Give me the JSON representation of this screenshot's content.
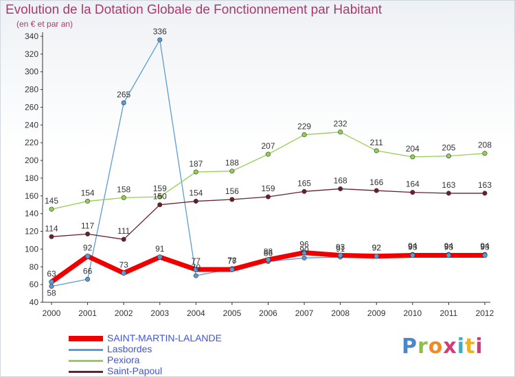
{
  "header": {
    "title": "Evolution de la Dotation Globale de Fonctionnement par Habitant",
    "subtitle": "(en € et par an)"
  },
  "brand": {
    "letters": [
      "P",
      "r",
      "o",
      "x",
      "i",
      "t",
      "i"
    ]
  },
  "chart_data": {
    "type": "line",
    "title": "Evolution de la Dotation Globale de Fonctionnement par Habitant",
    "subtitle": "(en € et par an)",
    "x": [
      "2000",
      "2001",
      "2002",
      "2003",
      "2004",
      "2005",
      "2006",
      "2007",
      "2008",
      "2009",
      "2010",
      "2011",
      "2012"
    ],
    "ylim": [
      40,
      340
    ],
    "yticks": [
      40,
      60,
      80,
      100,
      120,
      140,
      160,
      180,
      200,
      220,
      240,
      260,
      280,
      300,
      320,
      340
    ],
    "grid": false,
    "legend_position": "bottom-left",
    "series": [
      {
        "name": "SAINT-MARTIN-LALANDE",
        "color": "#ee0000",
        "values": [
          63,
          92,
          73,
          91,
          77,
          77,
          88,
          96,
          93,
          92,
          93,
          93,
          93
        ]
      },
      {
        "name": "Lasbordes",
        "color": "#5b9bd5",
        "values": [
          58,
          66,
          265,
          336,
          70,
          78,
          86,
          90,
          91,
          92,
          94,
          94,
          94
        ]
      },
      {
        "name": "Pexiora",
        "color": "#92d050",
        "values": [
          145,
          154,
          158,
          159,
          187,
          188,
          207,
          229,
          232,
          211,
          204,
          205,
          208
        ]
      },
      {
        "name": "Saint-Papoul",
        "color": "#6b1f2a",
        "values": [
          114,
          117,
          111,
          150,
          154,
          156,
          159,
          165,
          168,
          166,
          164,
          163,
          163
        ]
      }
    ]
  }
}
